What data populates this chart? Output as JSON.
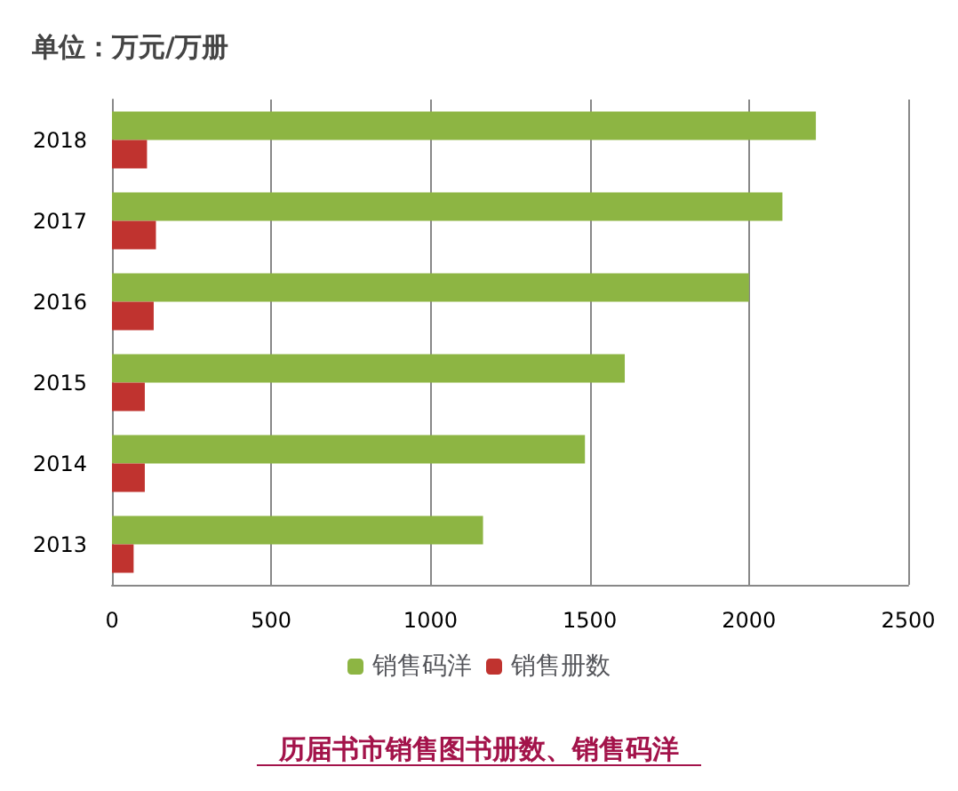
{
  "chart_data": {
    "type": "bar",
    "orientation": "horizontal",
    "title": "单位：万元/万册",
    "annotations": [
      "历届书市销售图书册数、销售码洋"
    ],
    "categories": [
      "2018",
      "2017",
      "2016",
      "2015",
      "2014",
      "2013"
    ],
    "series": [
      {
        "name": "销售码洋",
        "color": "#8db543",
        "values": [
          2210,
          2105,
          2000,
          1610,
          1485,
          1165
        ]
      },
      {
        "name": "销售册数",
        "color": "#c0332f",
        "values": [
          110,
          138,
          131,
          103,
          103,
          68
        ]
      }
    ],
    "xlim": [
      0,
      2500
    ],
    "xticks": [
      0,
      500,
      1000,
      1500,
      2000,
      2500
    ],
    "grid": "x",
    "legend": "bottom"
  }
}
